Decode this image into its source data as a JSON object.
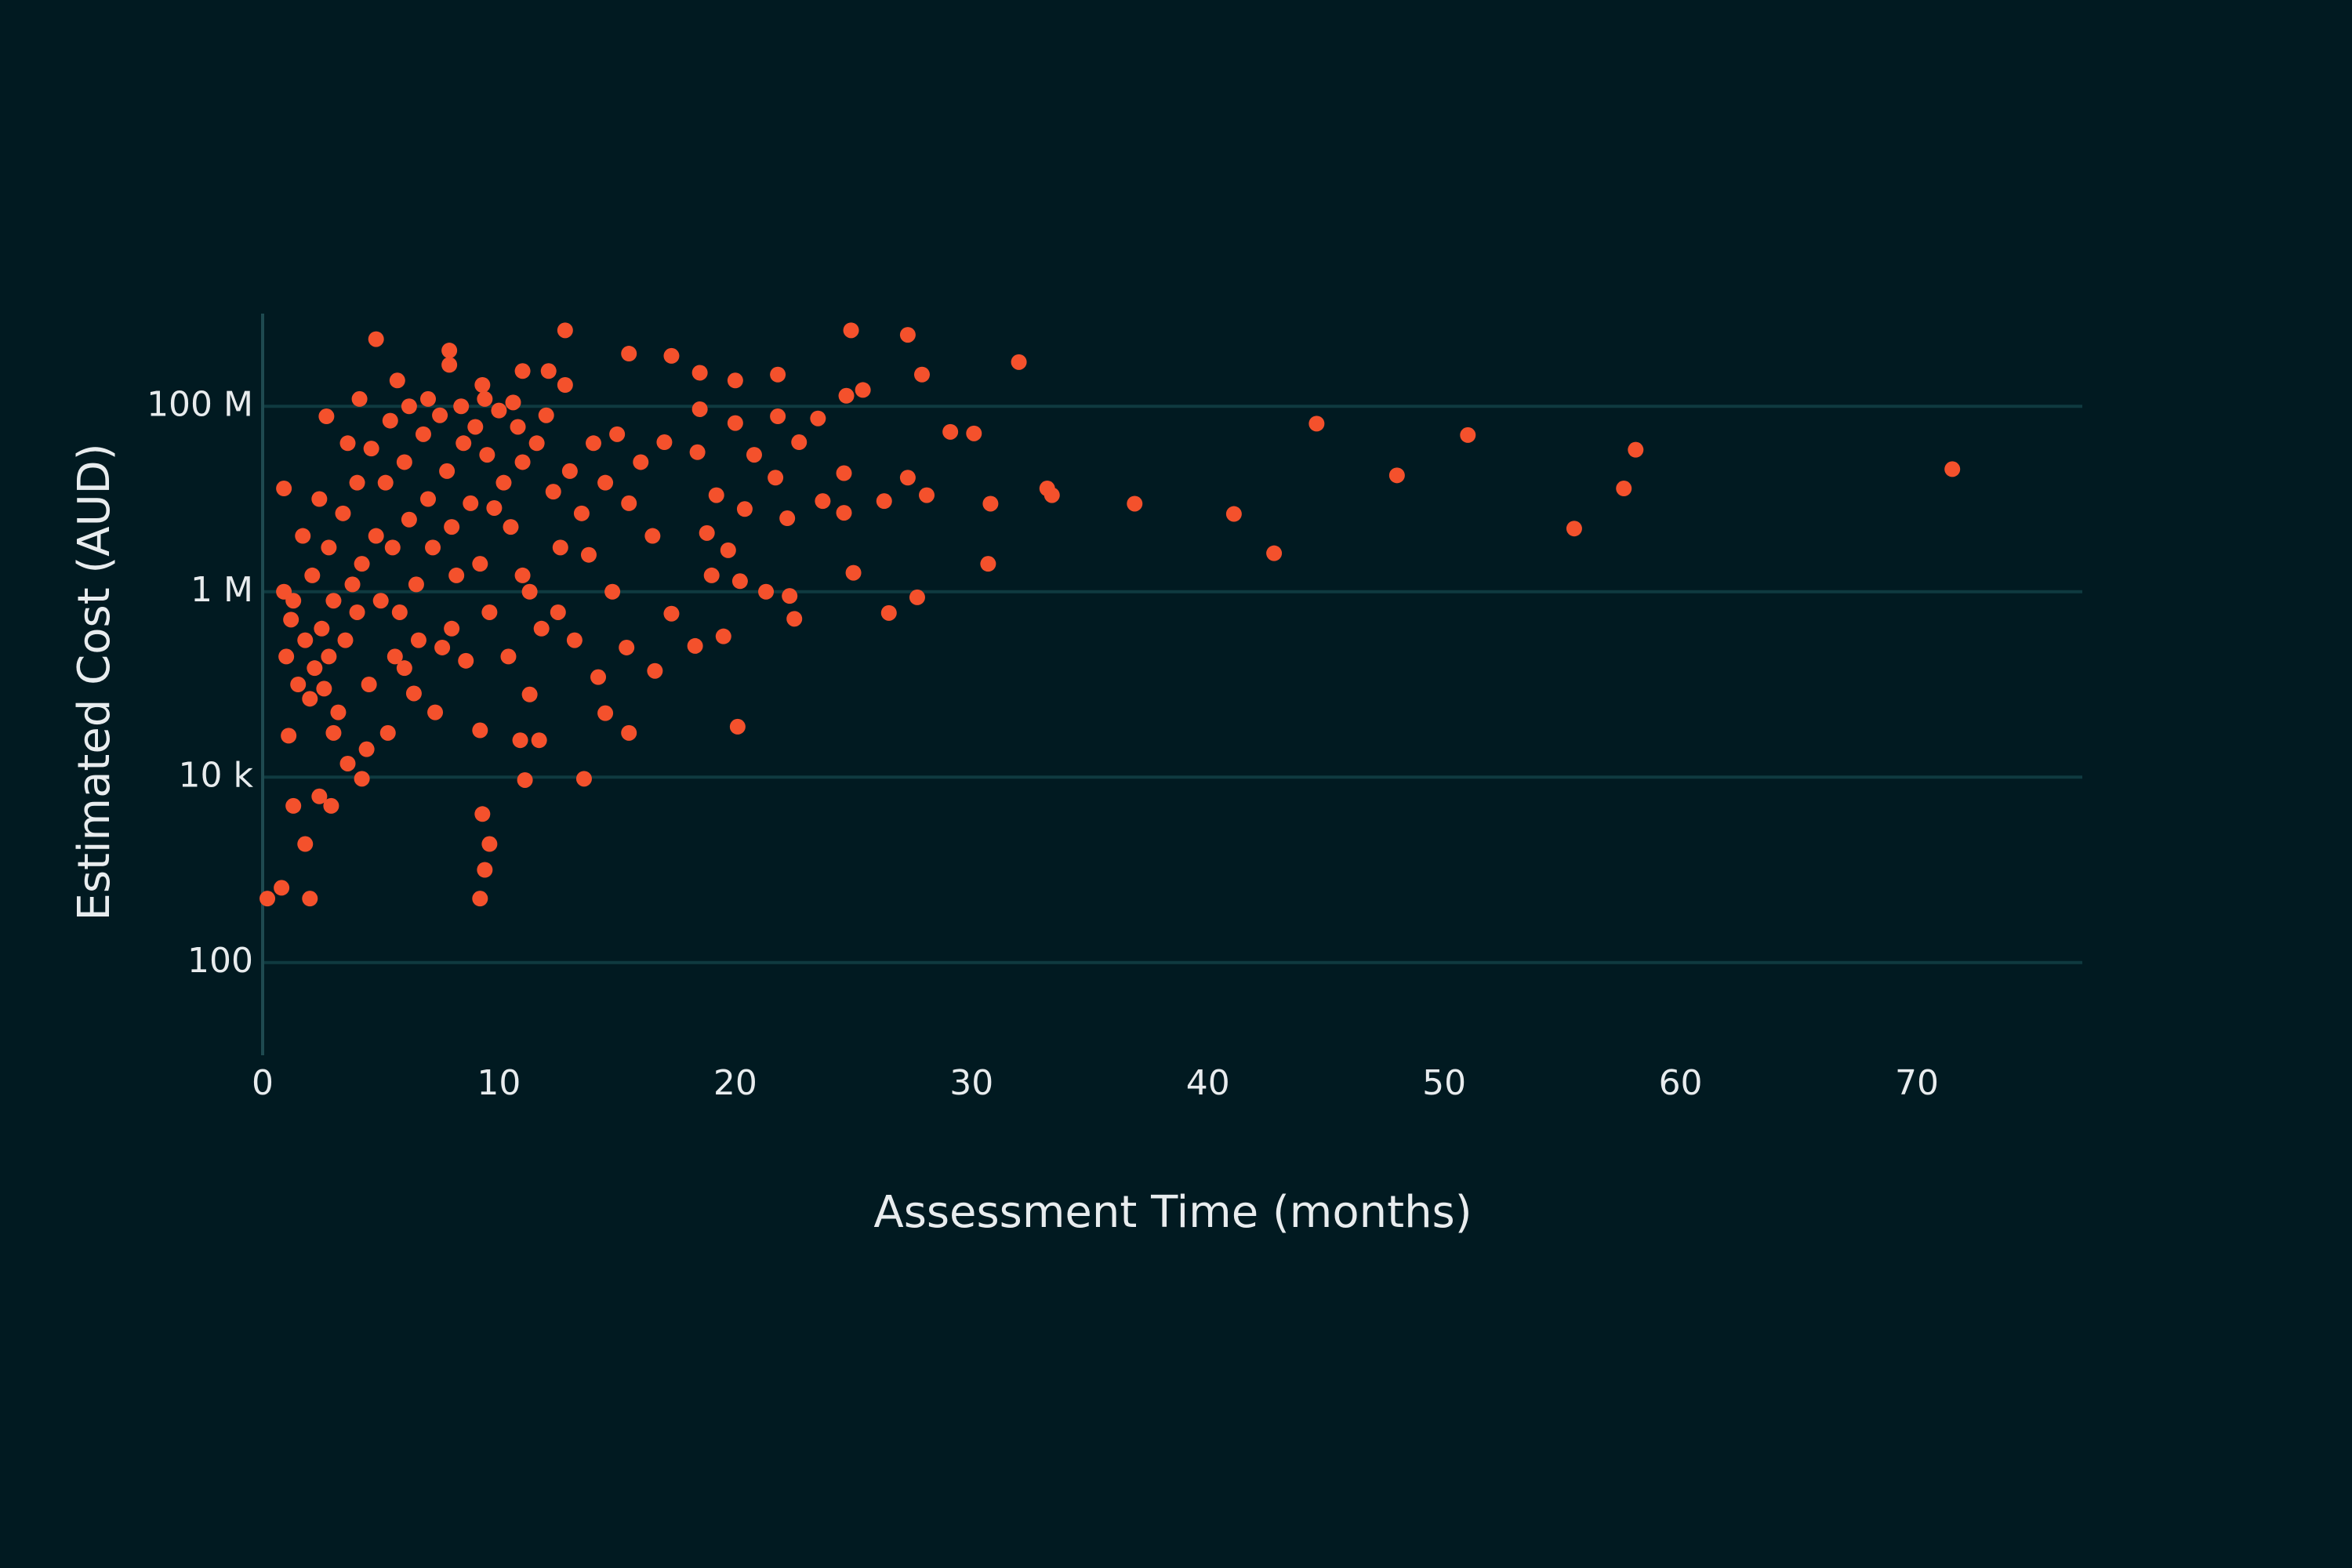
{
  "chart_data": {
    "type": "scatter",
    "x_label": "Assessment Time (months)",
    "y_label": "Estimated Cost (AUD)",
    "color": "#f4512c",
    "background": "#011a21",
    "grid_color": "#0f3a40",
    "ylog": true,
    "ygrid": true,
    "xgrid": false,
    "xlim": [
      0,
      77
    ],
    "ylim": [
      10,
      1000000000
    ],
    "xticks": [
      0,
      10,
      20,
      30,
      40,
      50,
      60,
      70
    ],
    "yticks": [
      100,
      {
        "value": 10000,
        "label": "10 k"
      },
      {
        "value": 1000000,
        "label": "1 M"
      },
      {
        "value": 100000000,
        "label": "100 M"
      }
    ],
    "x": [
      71.5,
      58.1,
      57.6,
      55.5,
      51.0,
      48.0,
      44.6,
      42.8,
      41.1,
      36.9,
      33.4,
      33.2,
      32.0,
      30.8,
      30.7,
      30.1,
      29.1,
      27.9,
      27.3,
      28.1,
      27.3,
      27.7,
      26.5,
      26.3,
      24.9,
      25.0,
      25.4,
      24.7,
      24.6,
      24.6,
      23.5,
      23.7,
      22.7,
      22.5,
      22.3,
      22.2,
      21.8,
      21.8,
      21.7,
      21.3,
      20.8,
      20.4,
      20.2,
      20.1,
      20.0,
      20.0,
      19.5,
      19.7,
      19.2,
      18.8,
      19.0,
      18.5,
      18.3,
      18.4,
      18.5,
      17.3,
      17.3,
      16.6,
      17.0,
      15.5,
      15.5,
      15.4,
      14.8,
      14.5,
      12.8,
      13.6,
      11.7,
      11.1,
      10.9,
      11.3,
      9.2,
      9.4,
      9.6,
      9.3,
      9.2,
      0.2,
      0.8,
      2.0,
      1.8,
      1.3,
      2.9,
      2.4,
      4.8,
      7.9,
      5.7,
      2.7,
      0.9,
      4.2,
      3.6,
      1.1,
      4.1,
      11.0,
      12.1,
      12.8,
      9.3,
      7.9,
      1.0,
      1.2,
      1.5,
      1.8,
      2.0,
      2.2,
      2.5,
      2.8,
      3.0,
      3.2,
      3.5,
      3.8,
      4.0,
      4.2,
      4.5,
      4.8,
      5.0,
      5.2,
      5.5,
      5.8,
      6.0,
      6.2,
      6.5,
      6.8,
      7.0,
      7.2,
      7.5,
      7.8,
      8.0,
      8.2,
      8.5,
      8.8,
      9.0,
      9.2,
      9.5,
      9.8,
      10.0,
      10.2,
      10.5,
      10.8,
      11.0,
      11.3,
      11.6,
      12.0,
      12.3,
      12.6,
      13.0,
      13.5,
      14.0,
      14.5,
      15.0,
      15.5,
      16.0,
      16.5,
      3.0,
      2.6,
      4.4,
      5.3,
      6.0,
      6.6,
      7.3,
      8.0,
      8.6,
      9.6,
      10.4,
      11.8,
      1.3,
      2.1,
      2.8,
      3.4,
      4.0,
      4.6,
      5.4,
      6.2,
      7.0,
      8.4,
      9.4,
      10.6,
      3.6,
      2.4,
      1.7,
      0.9,
      5.6,
      6.4,
      7.6,
      13.2,
      14.2,
      12.5,
      11.0,
      13.8
    ],
    "values": [
      21000000,
      34000000,
      13000000,
      4800000,
      49000000,
      18000000,
      65000000,
      2600000,
      6900000,
      8900000,
      11000000,
      13000000,
      300000000,
      8900000,
      2000000,
      51000000,
      53000000,
      220000000,
      590000000,
      11000000,
      17000000,
      870000,
      590000,
      9500000,
      660000000,
      1600000,
      150000000,
      130000000,
      19000000,
      7100000,
      74000000,
      9500000,
      41000000,
      510000,
      900000,
      6200000,
      220000000,
      78000000,
      17000000,
      1000000,
      30000000,
      7800000,
      1300000,
      35000,
      66000000,
      190000000,
      330000,
      2800000,
      11000000,
      4300000,
      1500000,
      230000000,
      260000,
      32000000,
      93000000,
      580000,
      350000000,
      140000,
      41000000,
      370000000,
      30000,
      250000,
      1000000,
      49000,
      660000000,
      9600,
      25000,
      9300,
      25000,
      78000,
      490,
      1000,
      1900,
      4000,
      32000,
      490,
      640,
      490,
      1900,
      4900,
      4900,
      6200,
      530000000,
      400000000,
      190000000,
      78000000,
      13000000,
      9600,
      14000,
      28000,
      120000000,
      240000000,
      240000000,
      170000000,
      170000000,
      280000000,
      200000,
      500000,
      100000,
      300000,
      70000,
      150000,
      400000,
      200000,
      800000,
      50000,
      300000,
      1200000,
      600000,
      2000000,
      100000,
      4000000,
      800000,
      15000000,
      3000000,
      600000,
      25000000,
      6000000,
      1200000,
      50000000,
      10000000,
      3000000,
      80000000,
      20000000,
      5000000,
      1500000,
      40000000,
      9000000,
      60000000,
      2000000,
      30000000,
      8000000,
      90000000,
      15000000,
      5000000,
      60000000,
      25000000,
      1000000,
      40000000,
      80000000,
      12000000,
      3000000,
      20000000,
      7000000,
      40000000,
      15000000,
      50000000,
      9000000,
      25000000,
      4000000,
      30000,
      90000,
      20000,
      30000,
      150000,
      300000,
      50000,
      400000,
      180000,
      600000,
      200000,
      400000,
      800000,
      1500000,
      3000000,
      7000000,
      15000000,
      35000000,
      70000000,
      100000000,
      120000000,
      100000000,
      120000000,
      110000000,
      40000000,
      10000000,
      4000000,
      1000000,
      200000,
      80000,
      250000,
      300000,
      120000,
      600000,
      1500000,
      2500000
    ]
  }
}
